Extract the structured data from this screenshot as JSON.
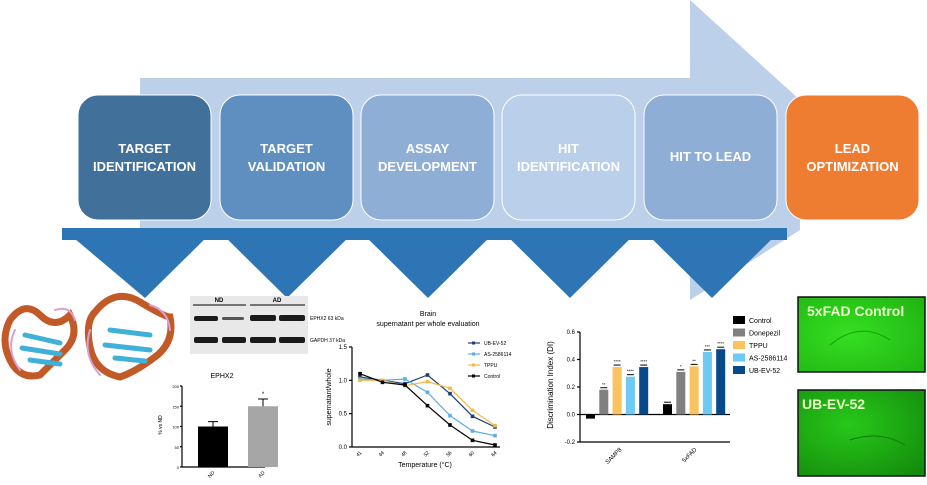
{
  "stages": [
    {
      "line1": "TARGET",
      "line2": "IDENTIFICATION",
      "color": "#41709b"
    },
    {
      "line1": "TARGET",
      "line2": "VALIDATION",
      "color": "#5e8fc0"
    },
    {
      "line1": "ASSAY",
      "line2": "DEVELOPMENT",
      "color": "#8eaed5"
    },
    {
      "line1": "HIT",
      "line2": "IDENTIFICATION",
      "color": "#bacfe9"
    },
    {
      "line1": "HIT TO LEAD",
      "line2": "",
      "color": "#8eaed5"
    },
    {
      "line1": "LEAD",
      "line2": "OPTIMIZATION",
      "color": "#ee7d31"
    }
  ],
  "colors": {
    "arrow": "#bdd0e9",
    "chevron": "#2e75b6"
  },
  "western_blot": {
    "groups": [
      "ND",
      "AD"
    ],
    "bands": [
      "EPHX2 63 kDa",
      "GAPDH 37 kDa"
    ]
  },
  "images": [
    {
      "label": "5xFAD Control"
    },
    {
      "label": "UB-EV-52"
    }
  ],
  "chart_data": [
    {
      "type": "bar",
      "title": "EPHX2",
      "ylabel": "% vs ND",
      "categories": [
        "ND",
        "AD"
      ],
      "values": [
        100,
        150
      ],
      "errors": [
        12,
        18
      ],
      "annotations": [
        "",
        "*"
      ],
      "colors": [
        "#000000",
        "#a6a6a6"
      ],
      "ylim": [
        0,
        200
      ],
      "yticks": [
        "0",
        "50",
        "100",
        "150",
        "200"
      ]
    },
    {
      "type": "line",
      "title": "Brain",
      "subtitle": "supernatant per whole evaluation",
      "xlabel": "Temperature (°C)",
      "ylabel": "supernatant/whole",
      "x": [
        "41",
        "44",
        "48",
        "52",
        "56",
        "60",
        "64"
      ],
      "ylim": [
        0,
        1.5
      ],
      "yticks": [
        "0.0",
        "0.5",
        "1.0",
        "1.5"
      ],
      "series": [
        {
          "name": "UB-EV-52",
          "color": "#1f3e73",
          "values": [
            1.05,
            1.0,
            0.95,
            1.08,
            0.8,
            0.46,
            0.3
          ]
        },
        {
          "name": "AS-2586114",
          "color": "#5aaee6",
          "values": [
            1.02,
            1.0,
            1.02,
            0.82,
            0.47,
            0.24,
            0.17
          ]
        },
        {
          "name": "TPPU",
          "color": "#f5b84a",
          "values": [
            1.0,
            1.0,
            0.92,
            0.98,
            0.88,
            0.55,
            0.32
          ]
        },
        {
          "name": "Control",
          "color": "#000000",
          "values": [
            1.1,
            0.97,
            0.93,
            0.62,
            0.33,
            0.1,
            0.03
          ]
        }
      ]
    },
    {
      "type": "bar",
      "ylabel": "Discrimination Index (DI)",
      "categories": [
        "SAMP8",
        "5xFAD"
      ],
      "ylim": [
        -0.2,
        0.6
      ],
      "yticks": [
        "-0.2",
        "0.0",
        "0.2",
        "0.4",
        "0.6"
      ],
      "series": [
        {
          "name": "Control",
          "color": "#000000",
          "values": [
            -0.03,
            0.075
          ],
          "stars": [
            "",
            ""
          ]
        },
        {
          "name": "Donepezil",
          "color": "#808080",
          "values": [
            0.18,
            0.31
          ],
          "stars": [
            "**",
            "*"
          ]
        },
        {
          "name": "TPPU",
          "color": "#fbc35f",
          "values": [
            0.345,
            0.35
          ],
          "stars": [
            "****",
            "**"
          ]
        },
        {
          "name": "AS-2586114",
          "color": "#6ccaf5",
          "values": [
            0.275,
            0.455
          ],
          "stars": [
            "****",
            "***"
          ]
        },
        {
          "name": "UB-EV-52",
          "color": "#064a8c",
          "values": [
            0.345,
            0.475
          ],
          "stars": [
            "****",
            "****"
          ]
        }
      ]
    }
  ]
}
